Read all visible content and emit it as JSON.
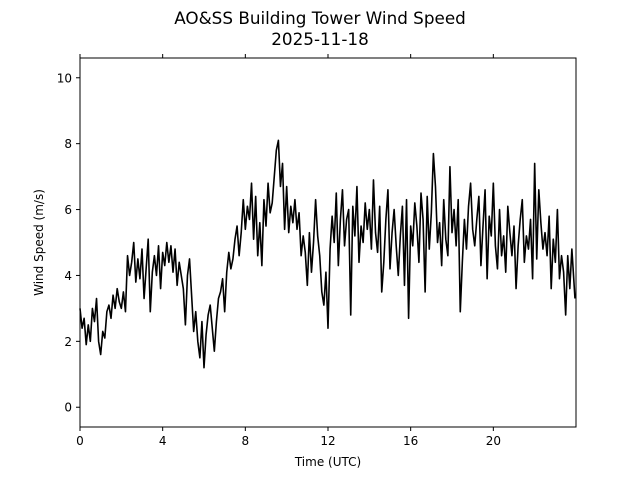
{
  "chart_data": {
    "type": "line",
    "title": "AO&SS Building Tower Wind Speed",
    "subtitle": "2025-11-18",
    "xlabel": "Time (UTC)",
    "ylabel": "Wind Speed (m/s)",
    "xlim": [
      0,
      24
    ],
    "ylim": [
      -0.6,
      10.6
    ],
    "xticks": [
      0,
      4,
      8,
      12,
      16,
      20
    ],
    "yticks": [
      0,
      2,
      4,
      6,
      8,
      10
    ],
    "grid": false,
    "series_color": "#000000",
    "series": [
      {
        "x": [
          0.0,
          0.1,
          0.2,
          0.3,
          0.4,
          0.5,
          0.6,
          0.7,
          0.8,
          0.9,
          1.0,
          1.1,
          1.2,
          1.3,
          1.4,
          1.5,
          1.6,
          1.7,
          1.8,
          1.9,
          2.0,
          2.1,
          2.2,
          2.3,
          2.4,
          2.5,
          2.6,
          2.7,
          2.8,
          2.9,
          3.0,
          3.1,
          3.2,
          3.3,
          3.4,
          3.5,
          3.6,
          3.7,
          3.8,
          3.9,
          4.0,
          4.1,
          4.2,
          4.3,
          4.4,
          4.5,
          4.6,
          4.7,
          4.8,
          4.9,
          5.0,
          5.1,
          5.2,
          5.3,
          5.4,
          5.5,
          5.6,
          5.7,
          5.8,
          5.9,
          6.0,
          6.1,
          6.2,
          6.3,
          6.4,
          6.5,
          6.6,
          6.7,
          6.8,
          6.9,
          7.0,
          7.1,
          7.2,
          7.3,
          7.4,
          7.5,
          7.6,
          7.7,
          7.8,
          7.9,
          8.0,
          8.1,
          8.2,
          8.3,
          8.4,
          8.5,
          8.6,
          8.7,
          8.8,
          8.9,
          9.0,
          9.1,
          9.2,
          9.3,
          9.4,
          9.5,
          9.6,
          9.7,
          9.8,
          9.9,
          10.0,
          10.1,
          10.2,
          10.3,
          10.4,
          10.5,
          10.6,
          10.7,
          10.8,
          10.9,
          11.0,
          11.1,
          11.2,
          11.3,
          11.4,
          11.5,
          11.6,
          11.7,
          11.8,
          11.9,
          12.0,
          12.1,
          12.2,
          12.3,
          12.4,
          12.5,
          12.6,
          12.7,
          12.8,
          12.9,
          13.0,
          13.1,
          13.2,
          13.3,
          13.4,
          13.5,
          13.6,
          13.7,
          13.8,
          13.9,
          14.0,
          14.1,
          14.2,
          14.3,
          14.4,
          14.5,
          14.6,
          14.7,
          14.8,
          14.9,
          15.0,
          15.1,
          15.2,
          15.3,
          15.4,
          15.5,
          15.6,
          15.7,
          15.8,
          15.9,
          16.0,
          16.1,
          16.2,
          16.3,
          16.4,
          16.5,
          16.6,
          16.7,
          16.8,
          16.9,
          17.0,
          17.1,
          17.2,
          17.3,
          17.4,
          17.5,
          17.6,
          17.7,
          17.8,
          17.9,
          18.0,
          18.1,
          18.2,
          18.3,
          18.4,
          18.5,
          18.6,
          18.7,
          18.8,
          18.9,
          19.0,
          19.1,
          19.2,
          19.3,
          19.4,
          19.5,
          19.6,
          19.7,
          19.8,
          19.9,
          20.0,
          20.1,
          20.2,
          20.3,
          20.4,
          20.5,
          20.6,
          20.7,
          20.8,
          20.9,
          21.0,
          21.1,
          21.2,
          21.3,
          21.4,
          21.5,
          21.6,
          21.7,
          21.8,
          21.9,
          22.0,
          22.1,
          22.2,
          22.3,
          22.4,
          22.5,
          22.6,
          22.7,
          22.8,
          22.9,
          23.0,
          23.1,
          23.2,
          23.3,
          23.4,
          23.5,
          23.6,
          23.7,
          23.8,
          23.95
        ],
        "y": [
          3.0,
          2.4,
          2.7,
          1.9,
          2.5,
          2.0,
          3.0,
          2.6,
          3.3,
          2.0,
          1.6,
          2.3,
          2.1,
          2.9,
          3.1,
          2.7,
          3.4,
          3.0,
          3.6,
          3.2,
          3.0,
          3.5,
          2.9,
          4.6,
          4.0,
          4.4,
          5.0,
          3.8,
          4.5,
          3.9,
          4.8,
          3.3,
          4.2,
          5.1,
          2.9,
          4.1,
          4.6,
          4.0,
          4.9,
          3.6,
          4.7,
          4.3,
          5.0,
          4.4,
          4.9,
          4.1,
          4.8,
          3.7,
          4.4,
          4.0,
          3.6,
          2.5,
          4.0,
          4.5,
          3.4,
          2.3,
          2.9,
          2.0,
          1.5,
          2.6,
          1.2,
          2.2,
          2.8,
          3.1,
          2.4,
          1.7,
          2.6,
          3.3,
          3.5,
          3.9,
          2.9,
          4.1,
          4.7,
          4.2,
          4.5,
          5.1,
          5.5,
          4.6,
          5.3,
          6.3,
          5.4,
          6.1,
          5.7,
          6.8,
          5.1,
          6.4,
          4.6,
          5.6,
          4.3,
          6.3,
          5.5,
          6.8,
          5.9,
          6.2,
          7.0,
          7.8,
          8.1,
          6.7,
          7.4,
          5.4,
          6.7,
          5.3,
          6.1,
          5.6,
          6.3,
          5.4,
          5.9,
          4.6,
          5.2,
          4.7,
          3.7,
          5.3,
          4.1,
          5.0,
          6.3,
          5.2,
          4.6,
          3.5,
          3.1,
          4.1,
          2.4,
          4.8,
          5.8,
          5.0,
          6.5,
          4.3,
          5.7,
          6.6,
          4.9,
          5.7,
          6.0,
          2.8,
          6.1,
          5.2,
          6.7,
          4.4,
          5.5,
          5.0,
          6.2,
          5.4,
          6.0,
          4.8,
          6.9,
          5.3,
          4.7,
          6.1,
          3.5,
          4.4,
          5.7,
          6.6,
          4.2,
          5.3,
          6.0,
          4.9,
          4.0,
          5.2,
          6.1,
          3.7,
          6.3,
          2.7,
          5.5,
          4.9,
          6.2,
          5.5,
          4.4,
          6.5,
          5.7,
          3.5,
          6.4,
          4.8,
          5.9,
          7.7,
          6.7,
          5.0,
          5.6,
          4.3,
          6.3,
          5.1,
          4.6,
          7.3,
          5.3,
          6.0,
          4.9,
          6.3,
          2.9,
          4.4,
          5.7,
          4.8,
          6.1,
          6.8,
          5.4,
          4.9,
          5.7,
          6.4,
          4.3,
          5.5,
          6.6,
          3.9,
          5.8,
          5.2,
          6.8,
          4.9,
          4.2,
          6.0,
          4.6,
          5.2,
          4.1,
          6.1,
          5.3,
          4.6,
          5.5,
          3.6,
          4.9,
          5.7,
          6.3,
          4.4,
          5.2,
          4.8,
          5.7,
          3.9,
          7.4,
          4.5,
          6.6,
          5.6,
          4.8,
          5.3,
          4.6,
          5.8,
          3.6,
          5.1,
          4.4,
          6.0,
          3.9,
          4.6,
          4.1,
          2.8,
          4.6,
          3.6,
          4.8,
          3.3
        ]
      }
    ]
  }
}
